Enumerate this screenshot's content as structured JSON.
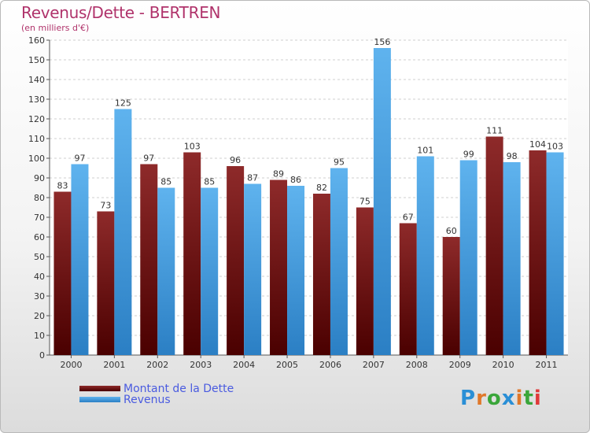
{
  "title": "Revenus/Dette - BERTREN",
  "subtitle": "(en milliers d'€)",
  "legend": [
    {
      "label": "Montant de la Dette",
      "color": "#7a0d0d"
    },
    {
      "label": "Revenus",
      "color": "#4fa8e8"
    }
  ],
  "logo": {
    "text": "Proxiti"
  },
  "chart_data": {
    "type": "bar",
    "categories": [
      "2000",
      "2001",
      "2002",
      "2003",
      "2004",
      "2005",
      "2006",
      "2007",
      "2008",
      "2009",
      "2010",
      "2011"
    ],
    "series": [
      {
        "name": "Montant de la Dette",
        "color": "#7a0d0d",
        "values": [
          83,
          73,
          97,
          103,
          96,
          89,
          82,
          75,
          67,
          60,
          111,
          104
        ]
      },
      {
        "name": "Revenus",
        "color": "#4fa8e8",
        "values": [
          97,
          125,
          85,
          85,
          87,
          86,
          95,
          156,
          101,
          99,
          98,
          103
        ]
      }
    ],
    "ylim": [
      0,
      160
    ],
    "yticks": [
      0,
      10,
      20,
      30,
      40,
      50,
      60,
      70,
      80,
      90,
      100,
      110,
      120,
      130,
      140,
      150,
      160
    ],
    "grid": true,
    "legend_position": "bottom-left"
  }
}
